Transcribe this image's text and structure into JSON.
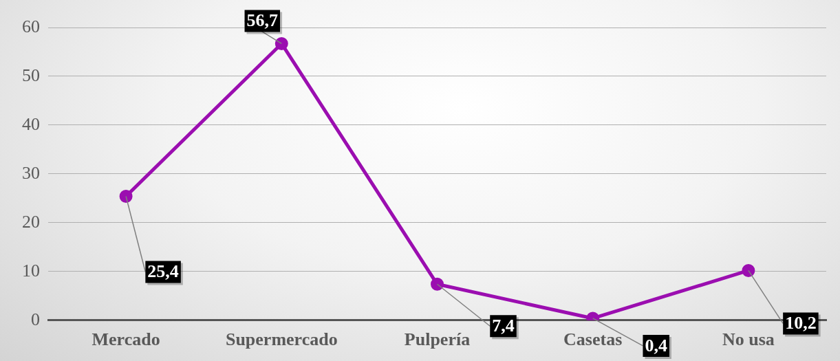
{
  "chart_data": {
    "type": "line",
    "categories": [
      "Mercado",
      "Supermercado",
      "Pulpería",
      "Casetas",
      "No usa"
    ],
    "series": [
      {
        "color": "#9b0eb0",
        "values": [
          25.4,
          56.7,
          7.4,
          0.4,
          10.2
        ],
        "value_labels": [
          "25,4",
          "56,7",
          "7,4",
          "0,4",
          "10,2"
        ]
      }
    ],
    "ylim": [
      0,
      60
    ],
    "yticks": [
      0,
      10,
      20,
      30,
      40,
      50,
      60
    ],
    "grid": "y",
    "legend": false,
    "marker": "circle",
    "line_style": "solid"
  }
}
